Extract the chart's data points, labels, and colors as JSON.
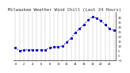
{
  "title": "Milwaukee Weather Wind Chill (Last 24 Hours)",
  "title_fontsize": 4.0,
  "background_color": "#ffffff",
  "line_color": "#0000bb",
  "marker": "s",
  "marker_size": 1.2,
  "linestyle": "dotted",
  "linewidth": 0.8,
  "hours": [
    0,
    1,
    2,
    3,
    4,
    5,
    6,
    7,
    8,
    9,
    10,
    11,
    12,
    13,
    14,
    15,
    16,
    17,
    18,
    19,
    20,
    21,
    22,
    23
  ],
  "values": [
    8,
    5,
    6,
    6,
    6,
    6,
    6,
    6,
    8,
    9,
    9,
    10,
    14,
    18,
    24,
    28,
    32,
    37,
    40,
    39,
    36,
    32,
    28,
    26
  ],
  "ylim": [
    -5,
    45
  ],
  "yticks": [
    -5,
    0,
    5,
    10,
    15,
    20,
    25,
    30,
    35,
    40
  ],
  "ytick_fontsize": 2.8,
  "xtick_labels": [
    "0",
    "",
    "2",
    "",
    "4",
    "",
    "6",
    "",
    "8",
    "",
    "10",
    "",
    "12",
    "",
    "14",
    "",
    "16",
    "",
    "18",
    "",
    "20",
    "",
    "22",
    ""
  ],
  "xtick_fontsize": 2.5,
  "grid_color": "#999999",
  "grid_linestyle": "--",
  "grid_linewidth": 0.3
}
